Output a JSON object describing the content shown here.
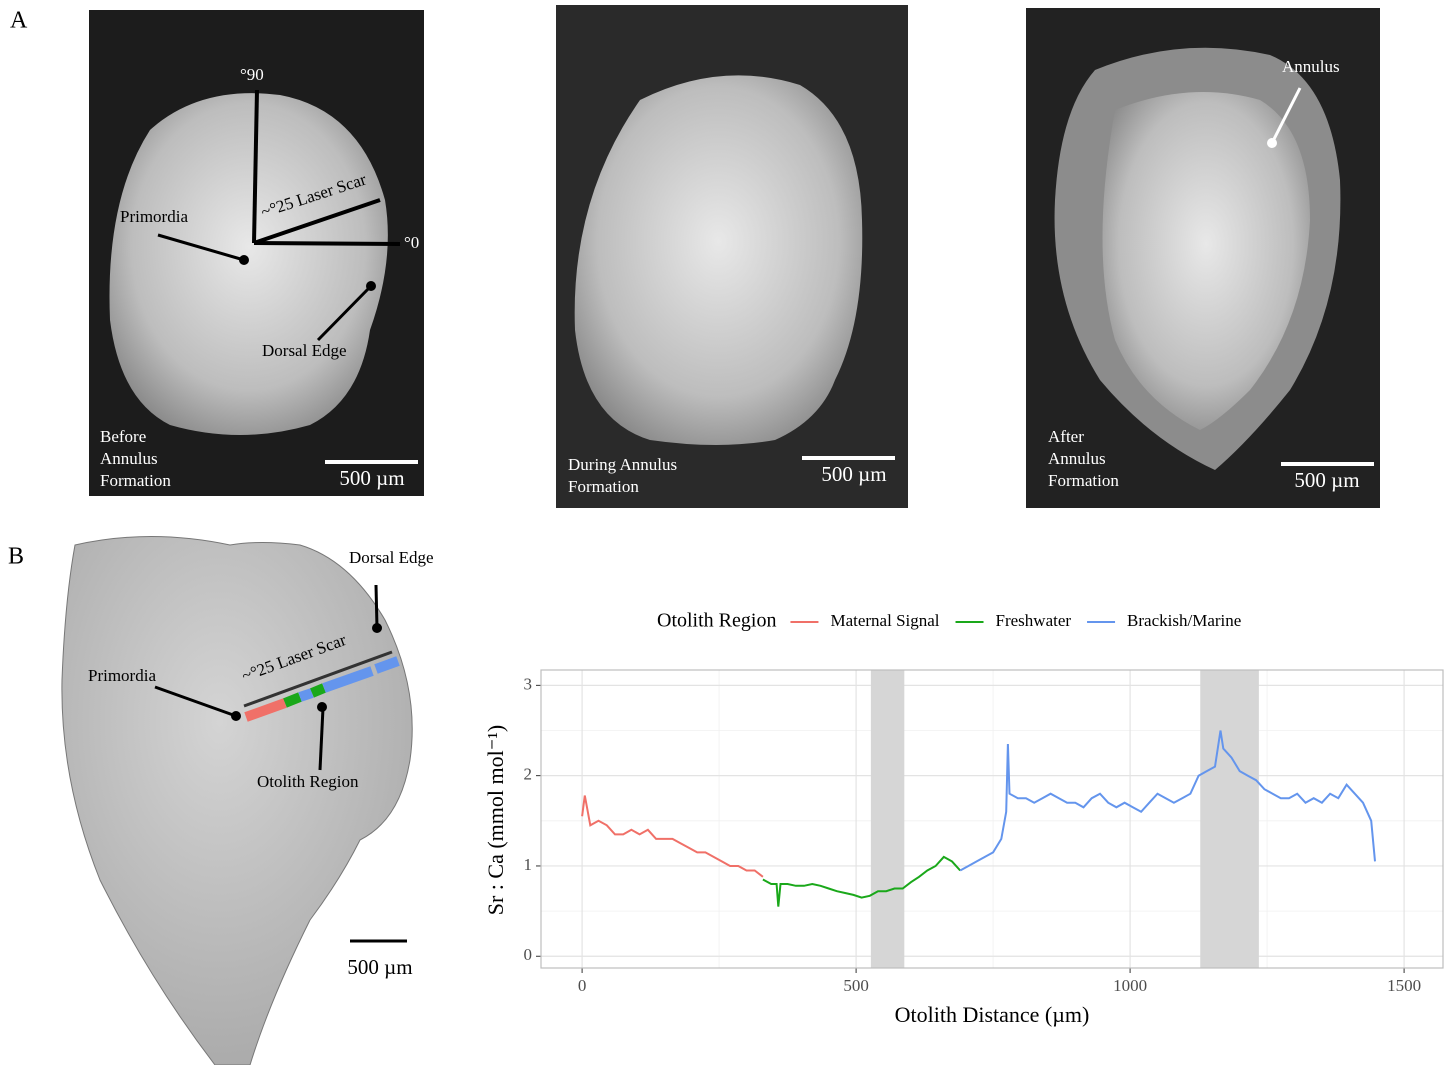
{
  "figure": {
    "panel_labels": [
      "A",
      "B"
    ],
    "photo_before": {
      "labels": [
        "°90",
        "Primordia",
        "~°25 Laser Scar",
        "°0",
        "Dorsal Edge"
      ],
      "caption": [
        "Before",
        "Annulus",
        "Formation"
      ],
      "scale": "500 µm"
    },
    "photo_during": {
      "caption": [
        "During Annulus",
        "Formation"
      ],
      "scale": "500 µm"
    },
    "photo_after": {
      "labels": [
        "Annulus"
      ],
      "caption": [
        "After",
        "Annulus",
        "Formation"
      ],
      "scale": "500 µm"
    },
    "photo_b": {
      "labels": [
        "Dorsal Edge",
        "~°25 Laser Scar",
        "Primordia",
        "Otolith Region"
      ],
      "scale": "500 µm"
    }
  },
  "chart_data": {
    "type": "line",
    "x_label": "Otolith Distance (µm)",
    "y_label": "Sr : Ca (mmol mol⁻¹)",
    "legend_title": "Otolith Region",
    "legend": "top",
    "grid": true,
    "xlim": [
      -75,
      1571
    ],
    "ylim": [
      -0.13,
      3.17
    ],
    "xticks": [
      0,
      500,
      1000,
      1500
    ],
    "yticks": [
      0,
      1,
      2,
      3
    ],
    "x_minor_grid": [
      250,
      750,
      1250
    ],
    "y_minor_grid": [
      0.5,
      1.5,
      2.5
    ],
    "shaded_regions": [
      [
        527,
        588
      ],
      [
        1128,
        1235
      ]
    ],
    "series": [
      {
        "name": "Maternal Signal",
        "color": "#f07068",
        "x": [
          0,
          5,
          15,
          30,
          45,
          60,
          75,
          90,
          105,
          120,
          135,
          150,
          165,
          180,
          195,
          210,
          225,
          240,
          255,
          270,
          285,
          300,
          315,
          330
        ],
        "values": [
          1.55,
          1.78,
          1.45,
          1.5,
          1.45,
          1.35,
          1.35,
          1.4,
          1.35,
          1.4,
          1.3,
          1.3,
          1.3,
          1.25,
          1.2,
          1.15,
          1.15,
          1.1,
          1.05,
          1.0,
          1.0,
          0.95,
          0.95,
          0.88
        ]
      },
      {
        "name": "Freshwater",
        "color": "#1aa81a",
        "x": [
          330,
          345,
          355,
          358,
          362,
          375,
          390,
          405,
          420,
          435,
          450,
          465,
          480,
          495,
          510,
          525,
          540,
          555,
          570,
          585,
          600,
          615,
          630,
          645,
          660,
          675,
          690
        ],
        "values": [
          0.85,
          0.8,
          0.8,
          0.55,
          0.8,
          0.8,
          0.78,
          0.78,
          0.8,
          0.78,
          0.75,
          0.72,
          0.7,
          0.68,
          0.65,
          0.67,
          0.72,
          0.72,
          0.75,
          0.75,
          0.82,
          0.88,
          0.95,
          1.0,
          1.1,
          1.05,
          0.95
        ]
      },
      {
        "name": "Brackish/Marine",
        "color": "#6495ed",
        "x": [
          690,
          705,
          720,
          735,
          750,
          765,
          774,
          777,
          780,
          795,
          810,
          825,
          840,
          855,
          870,
          885,
          900,
          915,
          930,
          945,
          960,
          975,
          990,
          1005,
          1020,
          1035,
          1050,
          1065,
          1080,
          1095,
          1110,
          1125,
          1140,
          1155,
          1165,
          1170,
          1185,
          1200,
          1215,
          1230,
          1245,
          1260,
          1275,
          1290,
          1305,
          1320,
          1335,
          1350,
          1365,
          1380,
          1395,
          1410,
          1425,
          1440,
          1447
        ],
        "values": [
          0.95,
          1.0,
          1.05,
          1.1,
          1.15,
          1.3,
          1.6,
          2.35,
          1.8,
          1.75,
          1.75,
          1.7,
          1.75,
          1.8,
          1.75,
          1.7,
          1.7,
          1.65,
          1.75,
          1.8,
          1.7,
          1.65,
          1.7,
          1.65,
          1.6,
          1.7,
          1.8,
          1.75,
          1.7,
          1.75,
          1.8,
          2.0,
          2.05,
          2.1,
          2.5,
          2.3,
          2.2,
          2.05,
          2.0,
          1.95,
          1.85,
          1.8,
          1.75,
          1.75,
          1.8,
          1.7,
          1.75,
          1.7,
          1.8,
          1.75,
          1.9,
          1.8,
          1.7,
          1.5,
          1.05
        ]
      }
    ]
  }
}
